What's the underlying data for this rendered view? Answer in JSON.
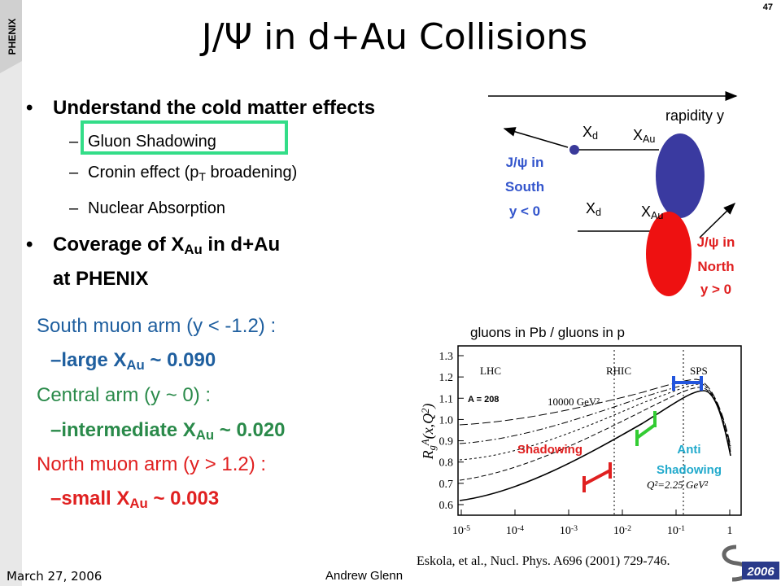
{
  "slide_number": "47",
  "logo_left": "PHENIX",
  "logo_right": "2006",
  "title": "J/Ψ in d+Au Collisions",
  "bullets": [
    {
      "parts": [
        {
          "t": "Understand the cold matter effects"
        }
      ],
      "sub_items": [
        [
          {
            "t": "Gluon Shadowing"
          }
        ],
        [
          {
            "t": "Cronin effect (p"
          },
          {
            "sub": "T"
          },
          {
            "t": " broadening)"
          }
        ],
        [
          {
            "t": "Nuclear Absorption"
          }
        ]
      ]
    },
    {
      "parts": [
        {
          "t": "Coverage of X"
        },
        {
          "sub": "Au"
        },
        {
          "t": " in d+Au"
        }
      ],
      "parts2": [
        {
          "t": "at PHENIX"
        }
      ]
    }
  ],
  "arms": [
    {
      "heading": "South muon arm (y < -1.2) :",
      "detail": [
        {
          "t": "–large X"
        },
        {
          "sub": "Au"
        },
        {
          "t": " ~ 0.090"
        }
      ]
    },
    {
      "heading": "Central arm (y ~ 0) :",
      "detail": [
        {
          "t": "–intermediate X"
        },
        {
          "sub": "Au"
        },
        {
          "t": " ~ 0.020"
        }
      ]
    },
    {
      "heading": "North muon arm (y > 1.2) :",
      "detail": [
        {
          "t": "–small X"
        },
        {
          "sub": "Au"
        },
        {
          "t": " ~ 0.003"
        }
      ]
    }
  ],
  "diagram": {
    "axis_label": "rapidity y",
    "x_d": [
      {
        "t": "X"
      },
      {
        "sub": "d"
      }
    ],
    "x_au": [
      {
        "t": "X"
      },
      {
        "sub": "Au"
      }
    ],
    "south": [
      "J/ψ in",
      "South",
      "y < 0"
    ],
    "north": [
      "J/ψ in",
      "North",
      "y > 0"
    ]
  },
  "plot": {
    "title": "gluons in Pb / gluons in p",
    "y_label": [
      {
        "t": "R"
      },
      {
        "sub": "g"
      },
      {
        "sup": "A"
      },
      {
        "t": "(x,Q"
      },
      {
        "sup": "2"
      },
      {
        "t": ")"
      }
    ],
    "y_ticks": [
      "1.3",
      "1.2",
      "1.1",
      "1.0",
      "0.9",
      "0.8",
      "0.7",
      "0.6"
    ],
    "x_ticks": [
      [
        {
          "t": "10"
        },
        {
          "sup": "-5"
        }
      ],
      [
        {
          "t": "10"
        },
        {
          "sup": "-4"
        }
      ],
      [
        {
          "t": "10"
        },
        {
          "sup": "-3"
        }
      ],
      [
        {
          "t": "10"
        },
        {
          "sup": "-2"
        }
      ],
      [
        {
          "t": "10"
        },
        {
          "sup": "-1"
        }
      ],
      [
        {
          "t": "1"
        }
      ]
    ],
    "labels": [
      "LHC",
      "RHIC",
      "SPS",
      "A = 208",
      "10000 GeV²",
      "Q²=2.25 GeV²"
    ],
    "shadowing": "Shadowing",
    "anti": [
      "Anti",
      "Shadowing"
    ]
  },
  "citation": "Eskola, et al.,  Nucl. Phys. A696 (2001) 729-746.",
  "date": "March 27, 2006",
  "author": "Andrew Glenn"
}
